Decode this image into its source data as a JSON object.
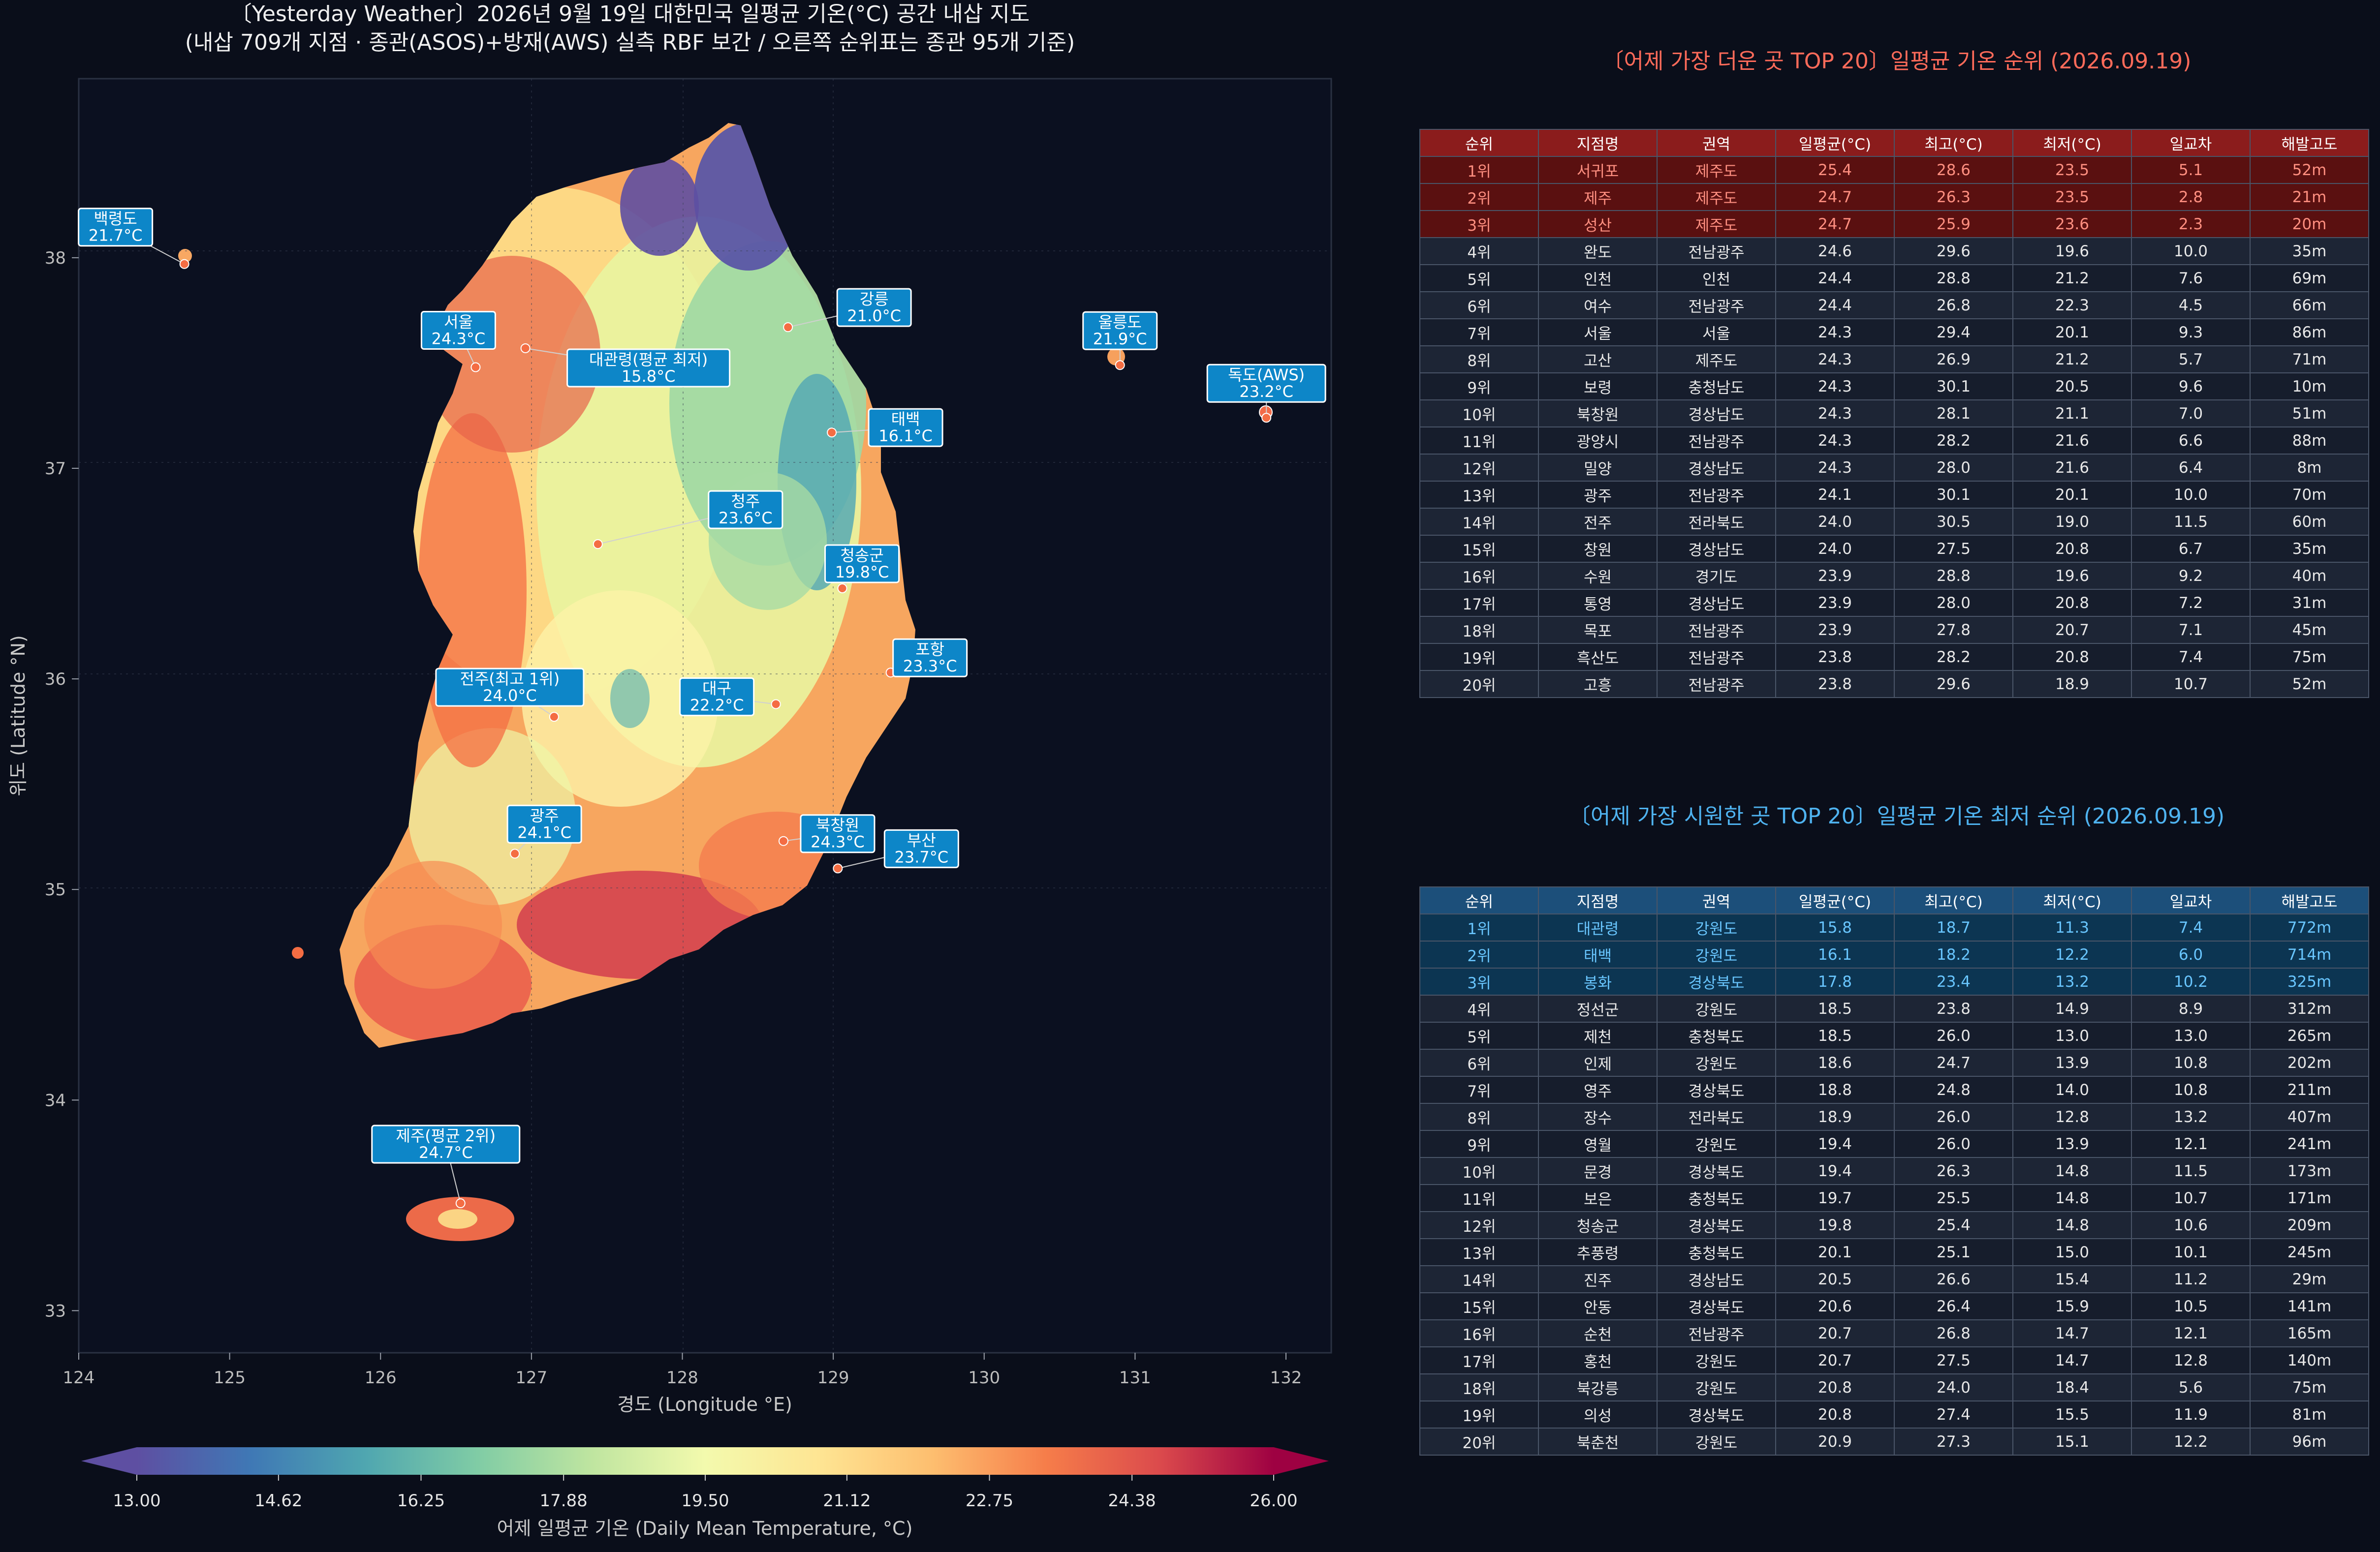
{
  "map": {
    "title_line1": "〔Yesterday Weather〕2026년 9월 19일 대한민국 일평균 기온(°C) 공간 내삽 지도",
    "title_line2": "(내삽 709개 지점 · 종관(ASOS)+방재(AWS) 실측 RBF 보간 / 오른쪽 순위표는 종관 95개 기준)",
    "xlabel": "경도 (Longitude °E)",
    "ylabel": "위도 (Latitude °N)",
    "xticks": [
      "124",
      "125",
      "126",
      "127",
      "128",
      "129",
      "130",
      "131",
      "132"
    ],
    "yticks": [
      "33",
      "34",
      "35",
      "36",
      "37",
      "38"
    ],
    "colorbar_label": "어제 일평균 기온 (Daily Mean Temperature, °C)",
    "colorbar_ticks": [
      "13.00",
      "14.62",
      "16.25",
      "17.88",
      "19.50",
      "21.12",
      "22.75",
      "24.38",
      "26.00"
    ],
    "colormap": "Spectral_r",
    "background": "#0a0e1a",
    "label_box_color": "#0d86c8"
  },
  "chart_data": {
    "type": "heatmap",
    "title": "〔Yesterday Weather〕2026년 9월 19일 대한민국 일평균 기온(°C) 공간 내삽 지도",
    "xlabel": "경도 (Longitude °E)",
    "ylabel": "위도 (Latitude °N)",
    "xlim": [
      124,
      132.3
    ],
    "ylim": [
      32.8,
      38.85
    ],
    "clim": [
      13.0,
      26.0
    ],
    "annotations": [
      {
        "name": "백령도",
        "temp": "21.7°C",
        "lon": 124.7,
        "lat": 37.97
      },
      {
        "name": "서울",
        "temp": "24.3°C",
        "lon": 126.63,
        "lat": 37.48
      },
      {
        "name": "대관령(평균 최저)",
        "temp": "15.8°C",
        "lon": 126.96,
        "lat": 37.57
      },
      {
        "name": "강릉",
        "temp": "21.0°C",
        "lon": 128.7,
        "lat": 37.67
      },
      {
        "name": "울릉도",
        "temp": "21.9°C",
        "lon": 130.9,
        "lat": 37.49
      },
      {
        "name": "독도(AWS)",
        "temp": "23.2°C",
        "lon": 131.87,
        "lat": 37.24
      },
      {
        "name": "태백",
        "temp": "16.1°C",
        "lon": 128.99,
        "lat": 37.17
      },
      {
        "name": "청주",
        "temp": "23.6°C",
        "lon": 127.44,
        "lat": 36.64
      },
      {
        "name": "청송군",
        "temp": "19.8°C",
        "lon": 129.06,
        "lat": 36.43
      },
      {
        "name": "포항",
        "temp": "23.3°C",
        "lon": 129.38,
        "lat": 36.03
      },
      {
        "name": "대구",
        "temp": "22.2°C",
        "lon": 128.62,
        "lat": 35.88
      },
      {
        "name": "전주(최고 1위)",
        "temp": "24.0°C",
        "lon": 127.15,
        "lat": 35.82
      },
      {
        "name": "북창원",
        "temp": "24.3°C",
        "lon": 128.67,
        "lat": 35.23
      },
      {
        "name": "광주",
        "temp": "24.1°C",
        "lon": 126.89,
        "lat": 35.17
      },
      {
        "name": "부산",
        "temp": "23.7°C",
        "lon": 129.03,
        "lat": 35.1
      },
      {
        "name": "제주(평균 2위)",
        "temp": "24.7°C",
        "lon": 126.53,
        "lat": 33.51
      }
    ]
  },
  "hot": {
    "title": "〔어제 가장 더운 곳 TOP 20〕일평균 기온 순위 (2026.09.19)",
    "title_color": "#ff6b5a",
    "headers": [
      "순위",
      "지점명",
      "권역",
      "일평균(°C)",
      "최고(°C)",
      "최저(°C)",
      "일교차",
      "해발고도"
    ],
    "rows": [
      [
        "1위",
        "서귀포",
        "제주도",
        "25.4",
        "28.6",
        "23.5",
        "5.1",
        "52m"
      ],
      [
        "2위",
        "제주",
        "제주도",
        "24.7",
        "26.3",
        "23.5",
        "2.8",
        "21m"
      ],
      [
        "3위",
        "성산",
        "제주도",
        "24.7",
        "25.9",
        "23.6",
        "2.3",
        "20m"
      ],
      [
        "4위",
        "완도",
        "전남광주",
        "24.6",
        "29.6",
        "19.6",
        "10.0",
        "35m"
      ],
      [
        "5위",
        "인천",
        "인천",
        "24.4",
        "28.8",
        "21.2",
        "7.6",
        "69m"
      ],
      [
        "6위",
        "여수",
        "전남광주",
        "24.4",
        "26.8",
        "22.3",
        "4.5",
        "66m"
      ],
      [
        "7위",
        "서울",
        "서울",
        "24.3",
        "29.4",
        "20.1",
        "9.3",
        "86m"
      ],
      [
        "8위",
        "고산",
        "제주도",
        "24.3",
        "26.9",
        "21.2",
        "5.7",
        "71m"
      ],
      [
        "9위",
        "보령",
        "충청남도",
        "24.3",
        "30.1",
        "20.5",
        "9.6",
        "10m"
      ],
      [
        "10위",
        "북창원",
        "경상남도",
        "24.3",
        "28.1",
        "21.1",
        "7.0",
        "51m"
      ],
      [
        "11위",
        "광양시",
        "전남광주",
        "24.3",
        "28.2",
        "21.6",
        "6.6",
        "88m"
      ],
      [
        "12위",
        "밀양",
        "경상남도",
        "24.3",
        "28.0",
        "21.6",
        "6.4",
        "8m"
      ],
      [
        "13위",
        "광주",
        "전남광주",
        "24.1",
        "30.1",
        "20.1",
        "10.0",
        "70m"
      ],
      [
        "14위",
        "전주",
        "전라북도",
        "24.0",
        "30.5",
        "19.0",
        "11.5",
        "60m"
      ],
      [
        "15위",
        "창원",
        "경상남도",
        "24.0",
        "27.5",
        "20.8",
        "6.7",
        "35m"
      ],
      [
        "16위",
        "수원",
        "경기도",
        "23.9",
        "28.8",
        "19.6",
        "9.2",
        "40m"
      ],
      [
        "17위",
        "통영",
        "경상남도",
        "23.9",
        "28.0",
        "20.8",
        "7.2",
        "31m"
      ],
      [
        "18위",
        "목포",
        "전남광주",
        "23.9",
        "27.8",
        "20.7",
        "7.1",
        "45m"
      ],
      [
        "19위",
        "흑산도",
        "전남광주",
        "23.8",
        "28.2",
        "20.8",
        "7.4",
        "75m"
      ],
      [
        "20위",
        "고흥",
        "전남광주",
        "23.8",
        "29.6",
        "18.9",
        "10.7",
        "52m"
      ]
    ]
  },
  "cold": {
    "title": "〔어제 가장 시원한 곳 TOP 20〕일평균 기온 최저 순위 (2026.09.19)",
    "title_color": "#4fb3f0",
    "headers": [
      "순위",
      "지점명",
      "권역",
      "일평균(°C)",
      "최고(°C)",
      "최저(°C)",
      "일교차",
      "해발고도"
    ],
    "rows": [
      [
        "1위",
        "대관령",
        "강원도",
        "15.8",
        "18.7",
        "11.3",
        "7.4",
        "772m"
      ],
      [
        "2위",
        "태백",
        "강원도",
        "16.1",
        "18.2",
        "12.2",
        "6.0",
        "714m"
      ],
      [
        "3위",
        "봉화",
        "경상북도",
        "17.8",
        "23.4",
        "13.2",
        "10.2",
        "325m"
      ],
      [
        "4위",
        "정선군",
        "강원도",
        "18.5",
        "23.8",
        "14.9",
        "8.9",
        "312m"
      ],
      [
        "5위",
        "제천",
        "충청북도",
        "18.5",
        "26.0",
        "13.0",
        "13.0",
        "265m"
      ],
      [
        "6위",
        "인제",
        "강원도",
        "18.6",
        "24.7",
        "13.9",
        "10.8",
        "202m"
      ],
      [
        "7위",
        "영주",
        "경상북도",
        "18.8",
        "24.8",
        "14.0",
        "10.8",
        "211m"
      ],
      [
        "8위",
        "장수",
        "전라북도",
        "18.9",
        "26.0",
        "12.8",
        "13.2",
        "407m"
      ],
      [
        "9위",
        "영월",
        "강원도",
        "19.4",
        "26.0",
        "13.9",
        "12.1",
        "241m"
      ],
      [
        "10위",
        "문경",
        "경상북도",
        "19.4",
        "26.3",
        "14.8",
        "11.5",
        "173m"
      ],
      [
        "11위",
        "보은",
        "충청북도",
        "19.7",
        "25.5",
        "14.8",
        "10.7",
        "171m"
      ],
      [
        "12위",
        "청송군",
        "경상북도",
        "19.8",
        "25.4",
        "14.8",
        "10.6",
        "209m"
      ],
      [
        "13위",
        "추풍령",
        "충청북도",
        "20.1",
        "25.1",
        "15.0",
        "10.1",
        "245m"
      ],
      [
        "14위",
        "진주",
        "경상남도",
        "20.5",
        "26.6",
        "15.4",
        "11.2",
        "29m"
      ],
      [
        "15위",
        "안동",
        "경상북도",
        "20.6",
        "26.4",
        "15.9",
        "10.5",
        "141m"
      ],
      [
        "16위",
        "순천",
        "전남광주",
        "20.7",
        "26.8",
        "14.7",
        "12.1",
        "165m"
      ],
      [
        "17위",
        "홍천",
        "강원도",
        "20.7",
        "27.5",
        "14.7",
        "12.8",
        "140m"
      ],
      [
        "18위",
        "북강릉",
        "강원도",
        "20.8",
        "24.0",
        "18.4",
        "5.6",
        "75m"
      ],
      [
        "19위",
        "의성",
        "경상북도",
        "20.8",
        "27.4",
        "15.5",
        "11.9",
        "81m"
      ],
      [
        "20위",
        "북춘천",
        "강원도",
        "20.9",
        "27.3",
        "15.1",
        "12.2",
        "96m"
      ]
    ]
  }
}
